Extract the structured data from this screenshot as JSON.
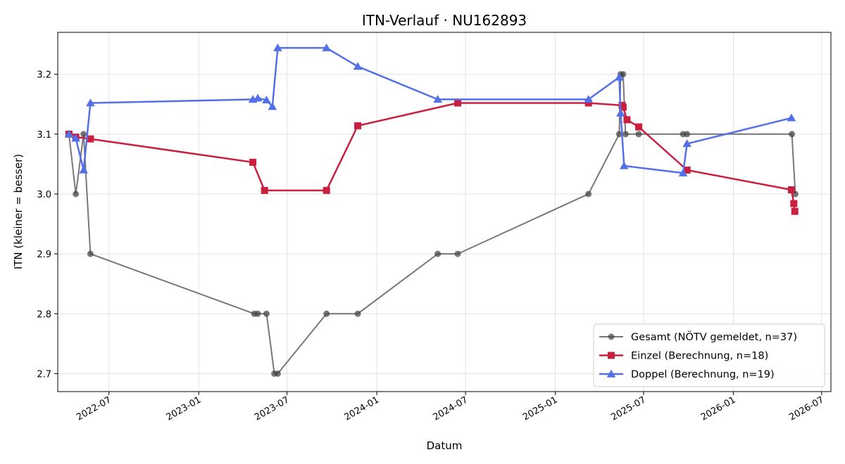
{
  "chart_data": {
    "type": "line",
    "title": "ITN-Verlauf · NU162893",
    "xlabel": "Datum",
    "ylabel": "ITN  (kleiner = besser)",
    "xlim": [
      "2022-03-18",
      "2026-07-20"
    ],
    "ylim": [
      2.67,
      3.27
    ],
    "x_ticks": [
      "2022-07",
      "2023-01",
      "2023-07",
      "2024-01",
      "2024-07",
      "2025-01",
      "2025-07",
      "2026-01",
      "2026-07"
    ],
    "y_ticks": [
      "2.7",
      "2.8",
      "2.9",
      "3.0",
      "3.1",
      "3.2"
    ],
    "grid": true,
    "legend_position": "lower-right",
    "series": [
      {
        "name": "Gesamt (NÖTV gemeldet, n=37)",
        "color": "#444444",
        "marker": "circle",
        "points": [
          [
            "2022-04-10",
            3.1
          ],
          [
            "2022-04-24",
            3.0
          ],
          [
            "2022-05-10",
            3.1
          ],
          [
            "2022-05-24",
            2.9
          ],
          [
            "2023-04-25",
            2.8
          ],
          [
            "2023-05-02",
            2.8
          ],
          [
            "2023-05-20",
            2.8
          ],
          [
            "2023-06-05",
            2.7
          ],
          [
            "2023-06-12",
            2.7
          ],
          [
            "2023-09-20",
            2.8
          ],
          [
            "2023-11-23",
            2.8
          ],
          [
            "2024-05-05",
            2.9
          ],
          [
            "2024-06-15",
            2.9
          ],
          [
            "2025-03-10",
            3.0
          ],
          [
            "2025-05-12",
            3.1
          ],
          [
            "2025-05-15",
            3.2
          ],
          [
            "2025-05-20",
            3.2
          ],
          [
            "2025-05-25",
            3.1
          ],
          [
            "2025-06-21",
            3.1
          ],
          [
            "2025-09-20",
            3.1
          ],
          [
            "2025-09-28",
            3.1
          ],
          [
            "2026-05-01",
            3.1
          ],
          [
            "2026-05-08",
            3.0
          ]
        ]
      },
      {
        "name": "Einzel (Berechnung, n=18)",
        "color": "#c8203e",
        "marker": "square",
        "points": [
          [
            "2022-04-10",
            3.1
          ],
          [
            "2022-04-24",
            3.095
          ],
          [
            "2022-05-24",
            3.092
          ],
          [
            "2023-04-22",
            3.053
          ],
          [
            "2023-05-16",
            3.006
          ],
          [
            "2023-09-20",
            3.006
          ],
          [
            "2023-11-23",
            3.114
          ],
          [
            "2024-06-15",
            3.152
          ],
          [
            "2025-03-10",
            3.152
          ],
          [
            "2025-05-18",
            3.148
          ],
          [
            "2025-05-20",
            3.145
          ],
          [
            "2025-05-28",
            3.124
          ],
          [
            "2025-06-21",
            3.112
          ],
          [
            "2025-09-28",
            3.04
          ],
          [
            "2026-04-30",
            3.007
          ],
          [
            "2026-05-05",
            2.984
          ],
          [
            "2026-05-07",
            2.971
          ]
        ]
      },
      {
        "name": "Doppel (Berechnung, n=19)",
        "color": "#5470e8",
        "marker": "triangle",
        "points": [
          [
            "2022-04-10",
            3.1
          ],
          [
            "2022-04-24",
            3.093
          ],
          [
            "2022-05-10",
            3.04
          ],
          [
            "2022-05-24",
            3.152
          ],
          [
            "2023-04-22",
            3.158
          ],
          [
            "2023-05-02",
            3.16
          ],
          [
            "2023-05-20",
            3.157
          ],
          [
            "2023-06-01",
            3.146
          ],
          [
            "2023-06-12",
            3.244
          ],
          [
            "2023-09-20",
            3.244
          ],
          [
            "2023-11-23",
            3.213
          ],
          [
            "2024-05-05",
            3.158
          ],
          [
            "2025-03-10",
            3.158
          ],
          [
            "2025-05-12",
            3.195
          ],
          [
            "2025-05-15",
            3.135
          ],
          [
            "2025-05-22",
            3.047
          ],
          [
            "2025-09-20",
            3.035
          ],
          [
            "2025-09-28",
            3.084
          ],
          [
            "2026-04-30",
            3.127
          ]
        ]
      }
    ]
  }
}
